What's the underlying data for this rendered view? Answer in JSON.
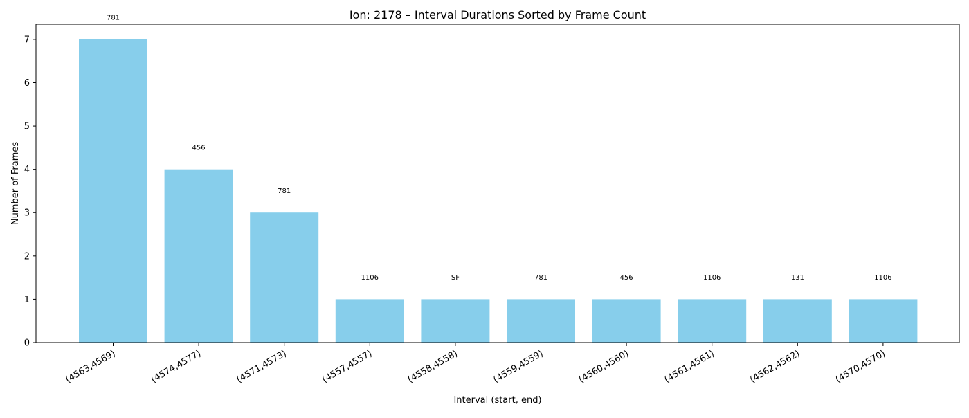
{
  "chart_data": {
    "type": "bar",
    "title": "Ion: 2178 – Interval Durations Sorted by Frame Count",
    "xlabel": "Interval (start, end)",
    "ylabel": "Number of Frames",
    "categories": [
      "(4563,4569)",
      "(4574,4577)",
      "(4571,4573)",
      "(4557,4557)",
      "(4558,4558)",
      "(4559,4559)",
      "(4560,4560)",
      "(4561,4561)",
      "(4562,4562)",
      "(4570,4570)"
    ],
    "values": [
      7,
      4,
      3,
      1,
      1,
      1,
      1,
      1,
      1,
      1
    ],
    "bar_labels": [
      "781",
      "456",
      "781",
      "1106",
      "SF",
      "781",
      "456",
      "1106",
      "131",
      "1106"
    ],
    "yticks": [
      0,
      1,
      2,
      3,
      4,
      5,
      6,
      7
    ],
    "ylim": [
      0,
      7.35
    ],
    "grid": false,
    "legend": "none",
    "colors": {
      "bar": "#87CEEB",
      "axis": "#000000"
    }
  }
}
